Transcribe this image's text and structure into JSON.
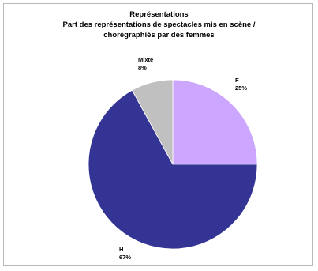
{
  "chart_data": {
    "type": "pie",
    "title": "Représentations",
    "subtitle_lines": [
      "Part des représentations de spectacles mis en scène /",
      "chorégraphiés par des femmes"
    ],
    "slices": [
      {
        "label": "F",
        "value": 25,
        "value_label": "25%",
        "color": "#cda6ff"
      },
      {
        "label": "H",
        "value": 67,
        "value_label": "67%",
        "color": "#343495"
      },
      {
        "label": "Mixte",
        "value": 8,
        "value_label": "8%",
        "color": "#c0c0c0"
      }
    ],
    "start_angle_deg": 0,
    "direction": "clockwise",
    "legend": "none",
    "labels_position": "outside"
  }
}
